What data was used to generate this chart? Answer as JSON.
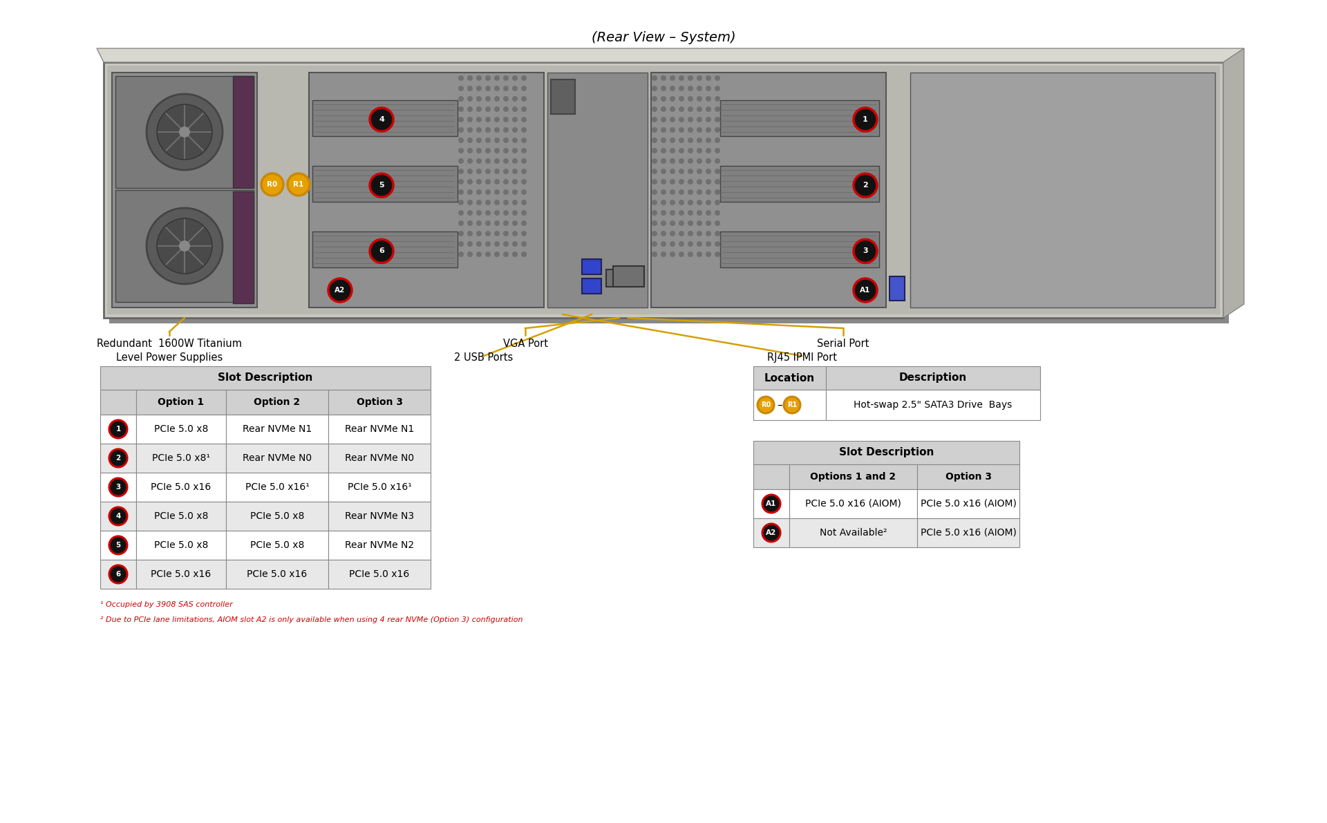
{
  "title": "(Rear View – System)",
  "bg_color": "#ffffff",
  "title_fontsize": 13,
  "table1_title": "Slot Description",
  "table1_col_headers": [
    "Option 1",
    "Option 2",
    "Option 3"
  ],
  "table1_rows": [
    {
      "label": "1",
      "cols": [
        "PCIe 5.0 x8",
        "Rear NVMe N1",
        "Rear NVMe N1"
      ],
      "shaded": false
    },
    {
      "label": "2",
      "cols": [
        "PCIe 5.0 x8¹",
        "Rear NVMe N0",
        "Rear NVMe N0"
      ],
      "shaded": true
    },
    {
      "label": "3",
      "cols": [
        "PCIe 5.0 x16",
        "PCIe 5.0 x16¹",
        "PCIe 5.0 x16¹"
      ],
      "shaded": false
    },
    {
      "label": "4",
      "cols": [
        "PCIe 5.0 x8",
        "PCIe 5.0 x8",
        "Rear NVMe N3"
      ],
      "shaded": true
    },
    {
      "label": "5",
      "cols": [
        "PCIe 5.0 x8",
        "PCIe 5.0 x8",
        "Rear NVMe N2"
      ],
      "shaded": false
    },
    {
      "label": "6",
      "cols": [
        "PCIe 5.0 x16",
        "PCIe 5.0 x16",
        "PCIe 5.0 x16"
      ],
      "shaded": true
    }
  ],
  "table2_col_headers": [
    "Location",
    "Description"
  ],
  "table2_row": {
    "desc": "Hot-swap 2.5\" SATA3 Drive  Bays"
  },
  "table3_title": "Slot Description",
  "table3_col_headers": [
    "Options 1 and 2",
    "Option 3"
  ],
  "table3_rows": [
    {
      "label": "A1",
      "cols": [
        "PCIe 5.0 x16 (AIOM)",
        "PCIe 5.0 x16 (AIOM)"
      ],
      "shaded": false
    },
    {
      "label": "A2",
      "cols": [
        "Not Available²",
        "PCIe 5.0 x16 (AIOM)"
      ],
      "shaded": true
    }
  ],
  "footnotes": [
    "¹ Occupied by 3908 SAS controller",
    "² Due to PCIe lane limitations, AIOM slot A2 is only available when using 4 rear NVMe (Option 3) configuration"
  ],
  "header_shaded_color": "#d0d0d0",
  "row_shaded_color": "#e8e8e8",
  "row_unshaded_color": "#ffffff",
  "border_color": "#888888",
  "text_color": "#000000",
  "footnote_color": "#cc0000",
  "gold_color": "#d4a000",
  "red_badge_border": "#cc0000",
  "red_badge_fill": "#111111",
  "gold_badge_fill": "#e6a000",
  "gold_badge_border": "#c8880a"
}
